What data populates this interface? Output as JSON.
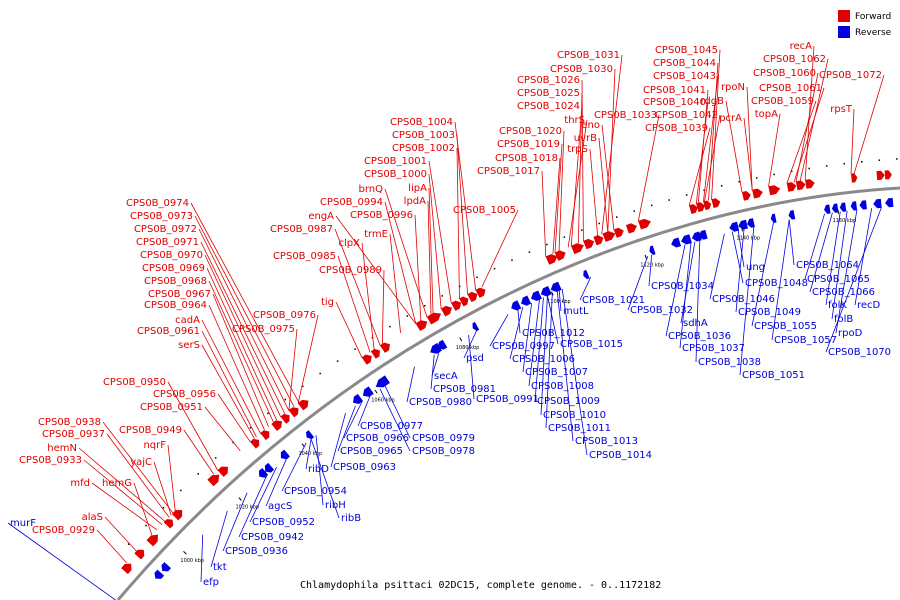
{
  "legend": [
    {
      "label": "Forward",
      "color": "#e00000"
    },
    {
      "label": "Reverse",
      "color": "#0000e0"
    }
  ],
  "caption": "Chlamydophila psittaci 02DC15, complete genome. - 0..1172182",
  "backbone_color": "#8a8a8a",
  "ticks": [
    "1000 kbp",
    "1020 kbp",
    "1040 kbp",
    "1060 kbp",
    "1080 kbp",
    "1100 kbp",
    "1120 kbp",
    "1140 kbp",
    "1160 kbp"
  ],
  "forward_genes": [
    "CPS0B_1031",
    "CPS0B_1030",
    "CPS0B_1026",
    "CPS0B_1025",
    "CPS0B_1024",
    "thrS",
    "eno",
    "uvrB",
    "CPS0B_1020",
    "CPS0B_1019",
    "trpS",
    "CPS0B_1018",
    "CPS0B_1017",
    "CPS0B_1033",
    "CPS0B_1045",
    "CPS0B_1044",
    "CPS0B_1043",
    "CPS0B_1041",
    "CPS0B_1040",
    "CPS0B_1042",
    "CPS0B_1039",
    "rpoN",
    "rdgB",
    "pcrA",
    "recA",
    "CPS0B_1062",
    "CPS0B_1060",
    "CPS0B_1061",
    "CPS0B_1059",
    "topA",
    "CPS0B_1072",
    "rpsT",
    "CPS0B_1004",
    "CPS0B_1003",
    "CPS0B_1002",
    "CPS0B_1001",
    "CPS0B_1000",
    "brnQ",
    "lipA",
    "CPS0B_0994",
    "lpdA",
    "CPS0B_0996",
    "CPS0B_1005",
    "engA",
    "CPS0B_0987",
    "trmE",
    "clpX",
    "CPS0B_0985",
    "CPS0B_0989",
    "CPS0B_0974",
    "CPS0B_0973",
    "CPS0B_0972",
    "CPS0B_0971",
    "CPS0B_0970",
    "CPS0B_0969",
    "CPS0B_0968",
    "CPS0B_0967",
    "CPS0B_0964",
    "tig",
    "CPS0B_0976",
    "cadA",
    "CPS0B_0961",
    "CPS0B_0975",
    "serS",
    "CPS0B_0950",
    "CPS0B_0956",
    "CPS0B_0951",
    "CPS0B_0949",
    "CPS0B_0938",
    "CPS0B_0937",
    "nqrF",
    "hemN",
    "yajC",
    "CPS0B_0933",
    "mfd",
    "hemG",
    "alaS",
    "CPS0B_0929"
  ],
  "reverse_genes": [
    "CPS0B_1021",
    "mutL",
    "CPS0B_1012",
    "CPS0B_1015",
    "CPS0B_0997",
    "CPS0B_1006",
    "CPS0B_1007",
    "CPS0B_1008",
    "CPS0B_1009",
    "CPS0B_1010",
    "CPS0B_1011",
    "CPS0B_1013",
    "CPS0B_1014",
    "CPS0B_1034",
    "CPS0B_1032",
    "ung",
    "CPS0B_1048",
    "CPS0B_1046",
    "CPS0B_1049",
    "sdhA",
    "CPS0B_1036",
    "CPS0B_1037",
    "CPS0B_1038",
    "CPS0B_1055",
    "CPS0B_1051",
    "CPS0B_1064",
    "CPS0B_1065",
    "CPS0B_1066",
    "folK",
    "recD",
    "folB",
    "rpoD",
    "CPS0B_1057",
    "CPS0B_1070",
    "psd",
    "secA",
    "CPS0B_0981",
    "CPS0B_0980",
    "CPS0B_0991",
    "CPS0B_0977",
    "CPS0B_0966",
    "CPS0B_0979",
    "CPS0B_0965",
    "CPS0B_0978",
    "ribD",
    "CPS0B_0963",
    "CPS0B_0954",
    "ribH",
    "ribB",
    "agcS",
    "CPS0B_0952",
    "CPS0B_0942",
    "CPS0B_0936",
    "tkt",
    "efp",
    "murF"
  ]
}
